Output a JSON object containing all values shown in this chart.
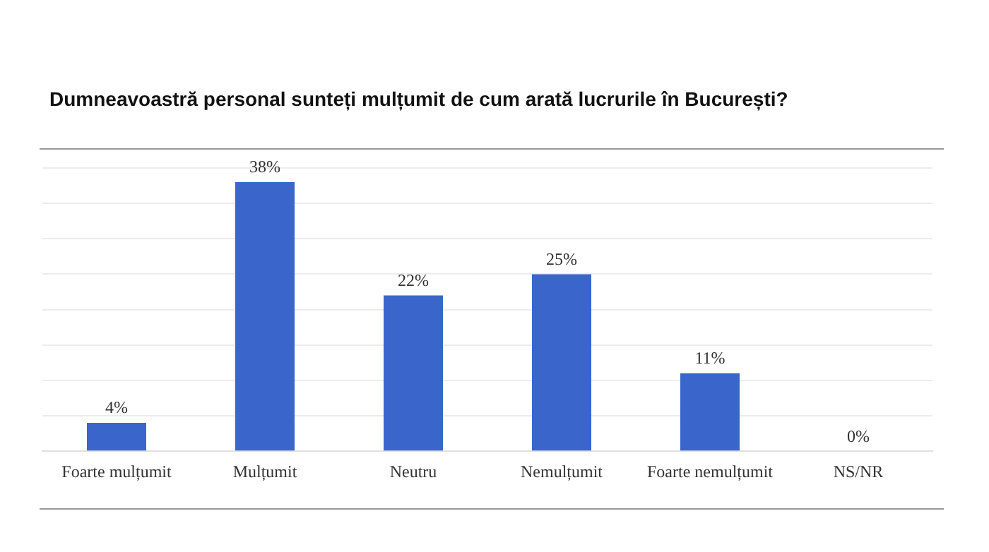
{
  "chart_data": {
    "type": "bar",
    "title": "Dumneavoastră personal sunteți mulțumit de cum arată lucrurile în București?",
    "categories": [
      "Foarte mulțumit",
      "Mulțumit",
      "Neutru",
      "Nemulțumit",
      "Foarte nemulțumit",
      "NS/NR"
    ],
    "values": [
      4,
      38,
      22,
      25,
      11,
      0
    ],
    "color": "#3a66cc",
    "value_labels": [
      "4%",
      "38%",
      "22%",
      "25%",
      "11%",
      "0%"
    ],
    "ylim": [
      0,
      40
    ],
    "yticks": [
      {
        "value": 0,
        "label": null
      },
      {
        "value": 5,
        "label": null
      },
      {
        "value": 10,
        "label": null
      },
      {
        "value": 15,
        "label": null
      },
      {
        "value": 20,
        "label": null
      },
      {
        "value": 25,
        "label": null
      },
      {
        "value": 30,
        "label": null
      },
      {
        "value": 35,
        "label": null
      },
      {
        "value": 40,
        "label": null
      }
    ],
    "grid": "y",
    "tick_labels": "x"
  }
}
